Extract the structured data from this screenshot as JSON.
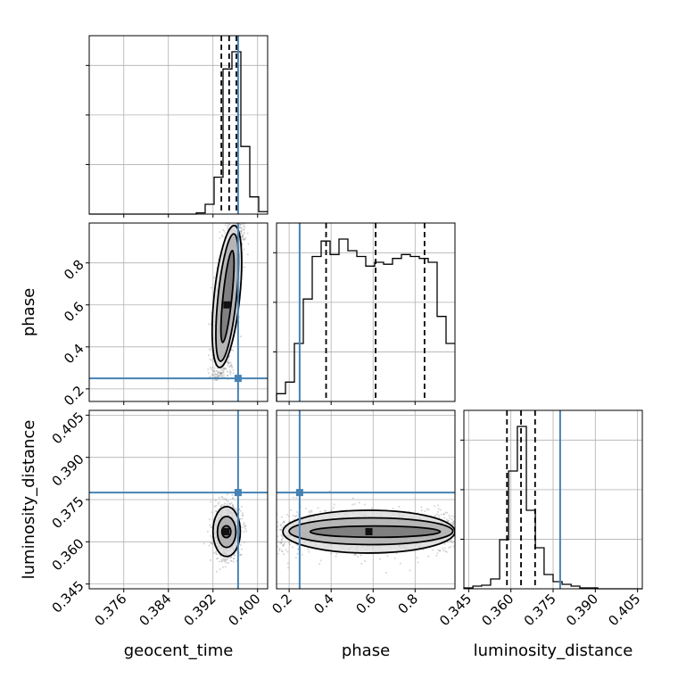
{
  "chart_data": {
    "type": "corner",
    "parameters": [
      "geocent_time",
      "phase",
      "luminosity_distance"
    ],
    "axis_labels": {
      "geocent_time": "geocent_time",
      "phase": "phase",
      "luminosity_distance": "luminosity_distance"
    },
    "ranges": {
      "geocent_time": [
        0.3698,
        0.4018
      ],
      "phase": [
        0.14,
        0.99
      ],
      "luminosity_distance": [
        0.3433,
        0.4067
      ]
    },
    "ticks": {
      "geocent_time": [
        "0.376",
        "0.384",
        "0.392",
        "0.400"
      ],
      "phase": [
        "0.2",
        "0.4",
        "0.6",
        "0.8"
      ],
      "luminosity_distance": [
        "0.345",
        "0.360",
        "0.375",
        "0.390",
        "0.405"
      ]
    },
    "truths": {
      "geocent_time": 0.3965,
      "phase": 0.25,
      "luminosity_distance": 0.3775
    },
    "quantiles": {
      "geocent_time": [
        0.3935,
        0.3949,
        0.3962
      ],
      "phase": [
        0.376,
        0.612,
        0.845
      ],
      "luminosity_distance": [
        0.3586,
        0.3636,
        0.3686
      ]
    },
    "histograms": {
      "geocent_time": {
        "edges": [
          0.3698,
          0.3714,
          0.373,
          0.3746,
          0.3762,
          0.3778,
          0.3794,
          0.381,
          0.3826,
          0.3842,
          0.3858,
          0.3874,
          0.389,
          0.3906,
          0.3922,
          0.3938,
          0.3954,
          0.397,
          0.3986,
          0.4002,
          0.4018
        ],
        "counts": [
          0,
          0,
          0,
          0,
          0,
          0,
          0,
          0,
          0,
          0,
          0,
          0,
          1,
          8,
          30,
          118,
          132,
          55,
          14,
          2
        ]
      },
      "phase": {
        "edges": [
          0.14,
          0.1825,
          0.225,
          0.2675,
          0.31,
          0.3525,
          0.395,
          0.4375,
          0.48,
          0.5225,
          0.565,
          0.6075,
          0.65,
          0.6925,
          0.735,
          0.7775,
          0.82,
          0.8625,
          0.905,
          0.9475,
          0.99
        ],
        "counts": [
          4,
          10,
          30,
          53,
          75,
          83,
          76,
          84,
          78,
          75,
          70,
          72,
          71,
          74,
          76,
          75,
          74,
          72,
          44,
          30
        ]
      },
      "luminosity_distance": {
        "edges": [
          0.3433,
          0.3465,
          0.3496,
          0.3528,
          0.356,
          0.3592,
          0.3623,
          0.3655,
          0.3687,
          0.3718,
          0.375,
          0.3782,
          0.3814,
          0.3845,
          0.3877,
          0.3909,
          0.394,
          0.3972,
          0.4004,
          0.4035,
          0.4067
        ],
        "counts": [
          1,
          3,
          4,
          11,
          55,
          132,
          182,
          88,
          46,
          16,
          8,
          5,
          3,
          1,
          1,
          0,
          0,
          0,
          0,
          0
        ]
      }
    },
    "joint": {
      "phase_vs_geocent_time": {
        "x_center": 0.3945,
        "y_center": 0.6,
        "contour_extents": [
          {
            "x": [
              0.3938,
              0.3954
            ],
            "y": [
              0.42,
              0.86
            ]
          },
          {
            "x": [
              0.3929,
              0.3962
            ],
            "y": [
              0.33,
              0.94
            ]
          },
          {
            "x": [
              0.3922,
              0.3968
            ],
            "y": [
              0.3,
              0.98
            ]
          }
        ]
      },
      "luminosity_distance_vs_geocent_time": {
        "x_center": 0.3943,
        "y_center": 0.3636,
        "contour_extents": [
          {
            "x": [
              0.3936,
              0.3952
            ],
            "y": [
              0.3615,
              0.3657
            ]
          },
          {
            "x": [
              0.3928,
              0.3961
            ],
            "y": [
              0.358,
              0.369
            ]
          },
          {
            "x": [
              0.392,
              0.3969
            ],
            "y": [
              0.3548,
              0.3725
            ]
          }
        ]
      },
      "luminosity_distance_vs_phase": {
        "x_center": 0.58,
        "y_center": 0.3636,
        "contour_extents": [
          {
            "x": [
              0.3,
              0.92
            ],
            "y": [
              0.3616,
              0.3656
            ]
          },
          {
            "x": [
              0.2,
              0.98
            ],
            "y": [
              0.359,
              0.3685
            ]
          },
          {
            "x": [
              0.17,
              0.99
            ],
            "y": [
              0.356,
              0.3712
            ]
          }
        ]
      }
    },
    "truth_color": "#4682b4",
    "grid": true
  }
}
